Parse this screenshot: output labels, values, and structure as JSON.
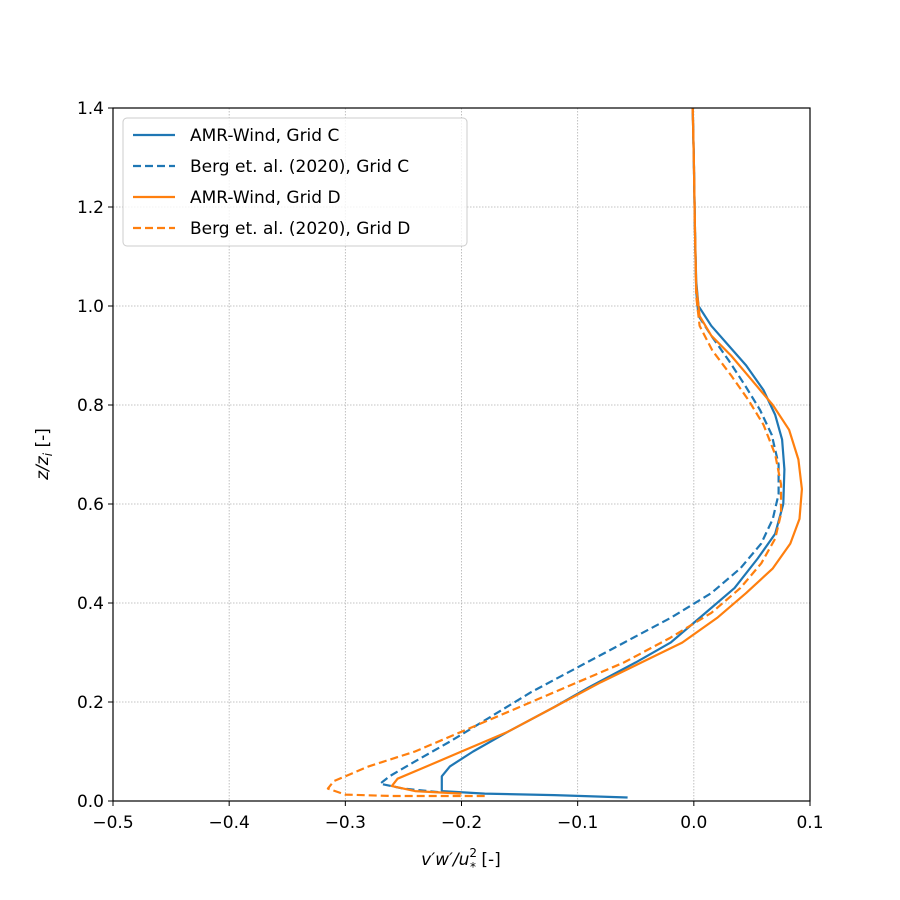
{
  "chart_data": {
    "type": "line",
    "title": "",
    "xlabel": "v′w′/u²* [-]",
    "ylabel": "z/zi [-]",
    "xlim": [
      -0.5,
      0.1
    ],
    "ylim": [
      0.0,
      1.4
    ],
    "x_ticks": [
      -0.5,
      -0.4,
      -0.3,
      -0.2,
      -0.1,
      0.0,
      0.1
    ],
    "x_tick_labels": [
      "−0.5",
      "−0.4",
      "−0.3",
      "−0.2",
      "−0.1",
      "0.0",
      "0.1"
    ],
    "y_ticks": [
      0.0,
      0.2,
      0.4,
      0.6,
      0.8,
      1.0,
      1.2,
      1.4
    ],
    "y_tick_labels": [
      "0.0",
      "0.2",
      "0.4",
      "0.6",
      "0.8",
      "1.0",
      "1.2",
      "1.4"
    ],
    "grid": true,
    "legend_position": "top-left",
    "series": [
      {
        "name": "AMR-Wind, Grid C",
        "color": "#1f77b4",
        "style": "solid",
        "x": [
          -0.057,
          -0.12,
          -0.18,
          -0.217,
          -0.217,
          -0.21,
          -0.19,
          -0.16,
          -0.12,
          -0.09,
          -0.05,
          -0.02,
          0.01,
          0.035,
          0.055,
          0.07,
          0.077,
          0.078,
          0.076,
          0.07,
          0.06,
          0.045,
          0.03,
          0.015,
          0.004,
          0.002,
          0.001,
          0.0,
          -0.001
        ],
        "y": [
          0.007,
          0.012,
          0.015,
          0.02,
          0.05,
          0.07,
          0.1,
          0.14,
          0.19,
          0.23,
          0.28,
          0.32,
          0.38,
          0.43,
          0.49,
          0.54,
          0.6,
          0.67,
          0.73,
          0.78,
          0.83,
          0.88,
          0.92,
          0.96,
          1.0,
          1.05,
          1.15,
          1.3,
          1.4
        ]
      },
      {
        "name": "Berg et. al. (2020), Grid C",
        "color": "#1f77b4",
        "style": "dashed",
        "x": [
          -0.22,
          -0.25,
          -0.27,
          -0.262,
          -0.24,
          -0.21,
          -0.175,
          -0.14,
          -0.1,
          -0.06,
          -0.02,
          0.015,
          0.04,
          0.058,
          0.068,
          0.073,
          0.073,
          0.067,
          0.057,
          0.044,
          0.03,
          0.015,
          0.004,
          0.002,
          0.001,
          0.0,
          -0.001
        ],
        "y": [
          0.018,
          0.025,
          0.035,
          0.05,
          0.08,
          0.12,
          0.17,
          0.22,
          0.27,
          0.32,
          0.37,
          0.42,
          0.47,
          0.52,
          0.57,
          0.62,
          0.68,
          0.74,
          0.79,
          0.84,
          0.89,
          0.94,
          0.98,
          1.03,
          1.15,
          1.3,
          1.4
        ]
      },
      {
        "name": "AMR-Wind, Grid D",
        "color": "#ff7f0e",
        "style": "solid",
        "x": [
          -0.2,
          -0.24,
          -0.26,
          -0.255,
          -0.23,
          -0.2,
          -0.16,
          -0.12,
          -0.08,
          -0.045,
          -0.01,
          0.02,
          0.045,
          0.068,
          0.083,
          0.091,
          0.093,
          0.09,
          0.082,
          0.068,
          0.05,
          0.032,
          0.015,
          0.005,
          0.002,
          0.001,
          0.0,
          -0.001
        ],
        "y": [
          0.015,
          0.02,
          0.03,
          0.045,
          0.07,
          0.1,
          0.14,
          0.19,
          0.24,
          0.28,
          0.32,
          0.37,
          0.42,
          0.47,
          0.52,
          0.57,
          0.63,
          0.69,
          0.75,
          0.8,
          0.85,
          0.9,
          0.94,
          0.98,
          1.04,
          1.15,
          1.3,
          1.4
        ]
      },
      {
        "name": "Berg et. al. (2020), Grid D",
        "color": "#ff7f0e",
        "style": "dashed",
        "x": [
          -0.18,
          -0.26,
          -0.3,
          -0.315,
          -0.31,
          -0.28,
          -0.24,
          -0.2,
          -0.15,
          -0.1,
          -0.06,
          -0.02,
          0.015,
          0.04,
          0.058,
          0.07,
          0.075,
          0.075,
          0.07,
          0.06,
          0.047,
          0.032,
          0.016,
          0.005,
          0.002,
          0.001,
          0.0,
          -0.001
        ],
        "y": [
          0.01,
          0.01,
          0.013,
          0.025,
          0.04,
          0.07,
          0.1,
          0.14,
          0.19,
          0.24,
          0.28,
          0.33,
          0.38,
          0.43,
          0.48,
          0.53,
          0.58,
          0.64,
          0.7,
          0.76,
          0.81,
          0.86,
          0.91,
          0.96,
          1.02,
          1.15,
          1.3,
          1.4
        ]
      }
    ]
  }
}
